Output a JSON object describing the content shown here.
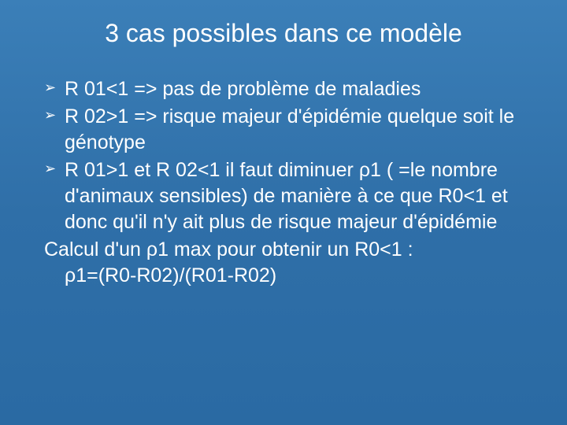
{
  "slide": {
    "background_gradient": [
      "#3b7fb8",
      "#2f6fa8",
      "#2a6aa3"
    ],
    "text_color": "#ffffff",
    "title": "3 cas possibles dans ce modèle",
    "title_fontsize": 32,
    "body_fontsize": 25,
    "bullets": [
      {
        "marker": "➢",
        "text": "R 01<1 => pas de problème de maladies"
      },
      {
        "marker": "➢",
        "text": "R 02>1 => risque majeur d'épidémie quelque soit le génotype"
      },
      {
        "marker": "➢",
        "text": "R 01>1 et R 02<1 il faut diminuer ρ1 ( =le nombre d'animaux sensibles) de manière à ce que R0<1 et donc qu'il n'y ait plus de risque majeur d'épidémie"
      }
    ],
    "plain_line": "Calcul d'un ρ1 max pour obtenir un R0<1 :",
    "formula_line": "ρ1=(R0-R02)/(R01-R02)"
  }
}
